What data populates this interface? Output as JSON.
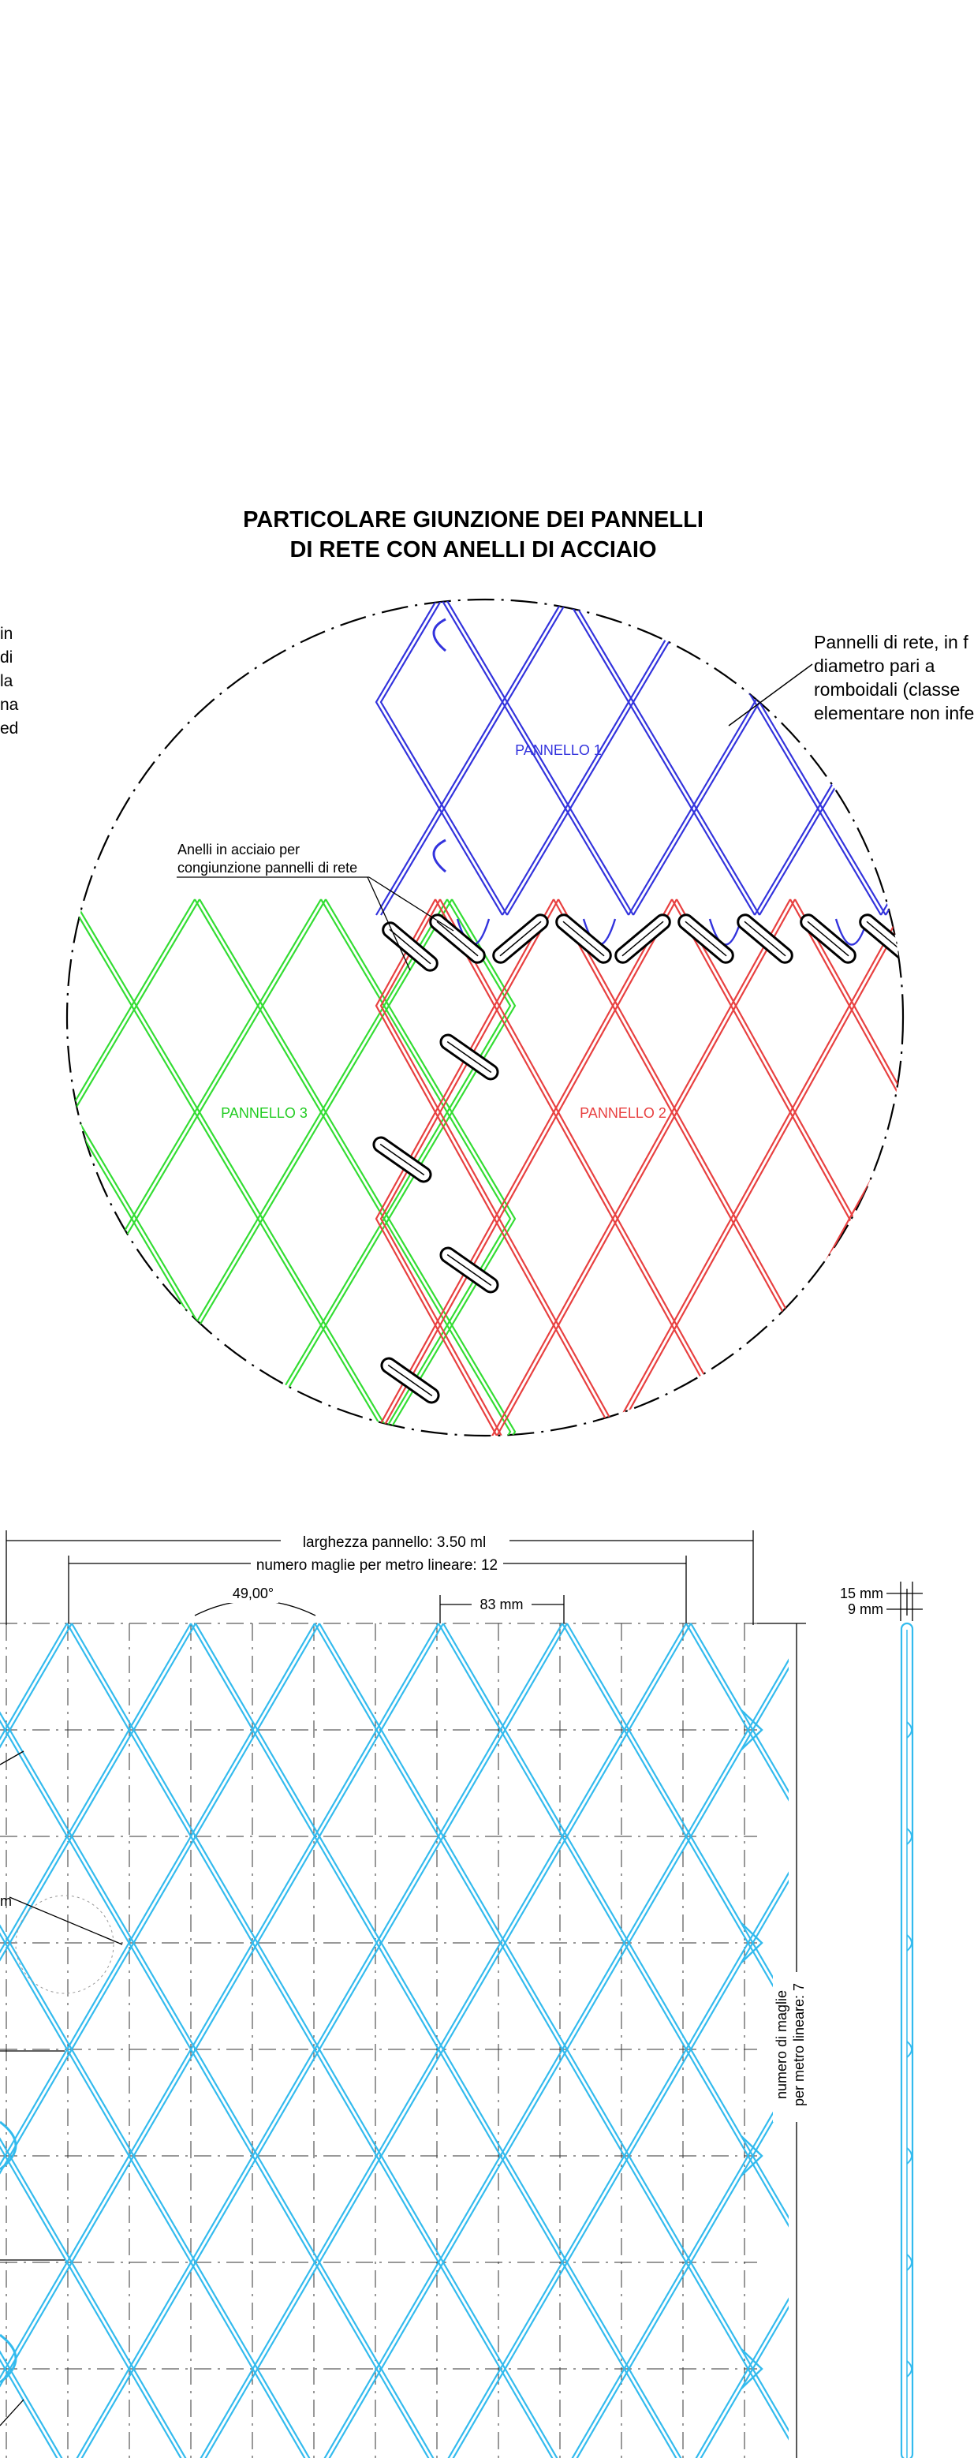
{
  "title": {
    "line1": "PARTICOLARE GIUNZIONE DEI PANNELLI",
    "line2": "DI RETE CON ANELLI DI ACCIAIO"
  },
  "left_note": {
    "lines": [
      "in",
      "di",
      "la",
      "na",
      "ed"
    ]
  },
  "right_note": {
    "lines": [
      "Pannelli di rete, in f",
      "diametro  pari  a",
      "romboidali  (classe",
      "elementare non infe"
    ]
  },
  "rings_note": {
    "lines": [
      "Anelli in acciaio per",
      "congiunzione pannelli di rete"
    ]
  },
  "panels": {
    "panel1": "PANNELLO 1",
    "panel2": "PANNELLO 2",
    "panel3": "PANNELLO 3"
  },
  "dimensions": {
    "panel_width": "larghezza pannello: 3.50 ml",
    "mesh_per_meter": "numero maglie per metro lineare: 12",
    "angle": "49,00°",
    "mesh_size": "83 mm",
    "thickness_outer": "15 mm",
    "thickness_inner": "9 mm",
    "vertical_line1": "numero di maglie",
    "vertical_line2": "per metro lineare: 7",
    "left_cut_label": "m"
  },
  "colors": {
    "panel1": "#3333dd",
    "panel2": "#e84040",
    "panel3": "#33dd33",
    "mesh": "#33bbee",
    "ink": "#000000"
  }
}
